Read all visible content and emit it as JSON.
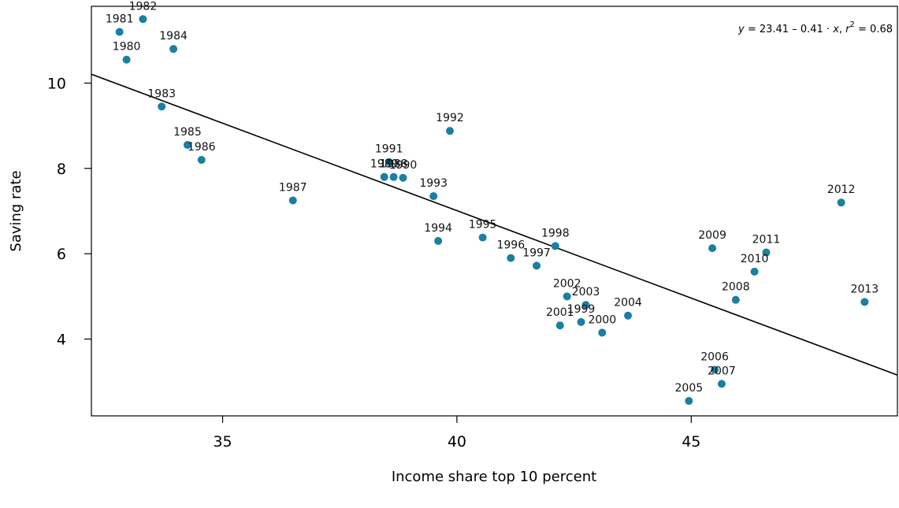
{
  "chart_data": {
    "type": "scatter",
    "xlabel": "Income share top 10 percent",
    "ylabel": "Saving rate",
    "xlim": [
      32.2,
      49.4
    ],
    "ylim": [
      2.2,
      11.8
    ],
    "xticks": [
      35,
      40,
      45
    ],
    "yticks": [
      4,
      6,
      8,
      10
    ],
    "point_color": "#1a7fa3",
    "line_color": "#000000",
    "annotation": {
      "y_var": "y",
      "eq_mid": " = 23.41 – 0.41 · ",
      "x_var": "x",
      "comma": ",  ",
      "r_var": "r",
      "sup": "2",
      "r_val": " = 0.68"
    },
    "regression": {
      "intercept": 23.41,
      "slope": -0.41
    },
    "points": [
      {
        "label": "1980",
        "x": 32.95,
        "y": 10.55
      },
      {
        "label": "1981",
        "x": 32.8,
        "y": 11.2
      },
      {
        "label": "1982",
        "x": 33.3,
        "y": 11.5
      },
      {
        "label": "1983",
        "x": 33.7,
        "y": 9.45
      },
      {
        "label": "1984",
        "x": 33.95,
        "y": 10.8
      },
      {
        "label": "1985",
        "x": 34.25,
        "y": 8.55
      },
      {
        "label": "1986",
        "x": 34.55,
        "y": 8.2
      },
      {
        "label": "1987",
        "x": 36.5,
        "y": 7.25
      },
      {
        "label": "1988",
        "x": 38.65,
        "y": 7.8
      },
      {
        "label": "1989",
        "x": 38.45,
        "y": 7.8
      },
      {
        "label": "1990",
        "x": 38.85,
        "y": 7.78
      },
      {
        "label": "1991",
        "x": 38.55,
        "y": 8.15
      },
      {
        "label": "1992",
        "x": 39.85,
        "y": 8.88
      },
      {
        "label": "1993",
        "x": 39.5,
        "y": 7.35
      },
      {
        "label": "1994",
        "x": 39.6,
        "y": 6.3
      },
      {
        "label": "1995",
        "x": 40.55,
        "y": 6.38
      },
      {
        "label": "1996",
        "x": 41.15,
        "y": 5.9
      },
      {
        "label": "1997",
        "x": 41.7,
        "y": 5.72
      },
      {
        "label": "1998",
        "x": 42.1,
        "y": 6.18
      },
      {
        "label": "1999",
        "x": 42.65,
        "y": 4.4
      },
      {
        "label": "2000",
        "x": 43.1,
        "y": 4.15
      },
      {
        "label": "2001",
        "x": 42.2,
        "y": 4.32
      },
      {
        "label": "2002",
        "x": 42.35,
        "y": 5.0
      },
      {
        "label": "2003",
        "x": 42.75,
        "y": 4.8
      },
      {
        "label": "2004",
        "x": 43.65,
        "y": 4.55
      },
      {
        "label": "2005",
        "x": 44.95,
        "y": 2.55
      },
      {
        "label": "2006",
        "x": 45.5,
        "y": 3.28
      },
      {
        "label": "2007",
        "x": 45.65,
        "y": 2.95
      },
      {
        "label": "2008",
        "x": 45.95,
        "y": 4.92
      },
      {
        "label": "2009",
        "x": 45.45,
        "y": 6.13
      },
      {
        "label": "2010",
        "x": 46.35,
        "y": 5.58
      },
      {
        "label": "2011",
        "x": 46.6,
        "y": 6.03
      },
      {
        "label": "2012",
        "x": 48.2,
        "y": 7.2
      },
      {
        "label": "2013",
        "x": 48.7,
        "y": 4.87
      }
    ]
  }
}
